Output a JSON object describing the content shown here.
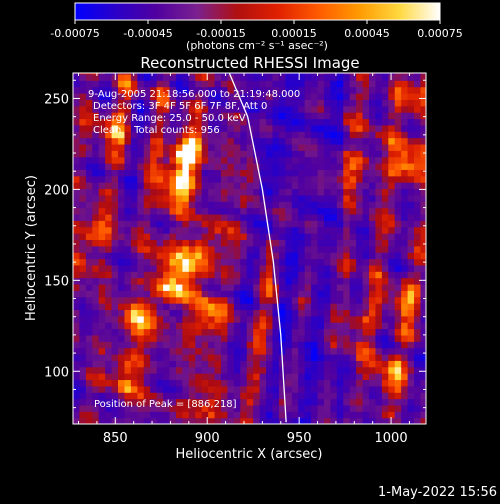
{
  "chart_data": {
    "type": "heatmap",
    "title": "Reconstructed RHESSI Image",
    "xlabel": "Heliocentric X (arcsec)",
    "ylabel": "Heliocentric Y (arcsec)",
    "xlim": [
      827,
      1019
    ],
    "ylim": [
      71,
      264
    ],
    "x_ticks": [
      850,
      900,
      950,
      1000
    ],
    "y_ticks": [
      100,
      150,
      200,
      250
    ],
    "colorbar": {
      "range": [
        -0.00075,
        0.00075
      ],
      "tick_labels": [
        "-0.00075",
        "-0.00045",
        "-0.00015",
        "0.00015",
        "0.00045",
        "0.00075"
      ],
      "unit_label": "(photons cm⁻² s⁻¹ asec⁻²)",
      "colors": [
        "#0000ff",
        "#2a00c8",
        "#5000a0",
        "#7a2090",
        "#b01010",
        "#e02000",
        "#ff5a00",
        "#ff9a00",
        "#ffd840",
        "#ffffff"
      ]
    },
    "annotations": [
      "9-Aug-2005 21:18:56.000 to 21:19:48.000",
      "Detectors: 3F 4F 5F 6F 7F 8F, Att 0",
      "Energy Range: 25.0 - 50.0 keV",
      "Clean    Total counts: 956"
    ],
    "peak_label": "Position of Peak = [886,218]",
    "peak": [
      886,
      218
    ],
    "limb_curve": [
      [
        912,
        264
      ],
      [
        922,
        240
      ],
      [
        930,
        200
      ],
      [
        936,
        160
      ],
      [
        940,
        120
      ],
      [
        943,
        71
      ]
    ],
    "bright_sources": [
      {
        "x": 888,
        "y": 220,
        "intensity": 1.0
      },
      {
        "x": 883,
        "y": 200,
        "intensity": 0.7
      },
      {
        "x": 893,
        "y": 165,
        "intensity": 0.85
      },
      {
        "x": 882,
        "y": 148,
        "intensity": 0.8
      },
      {
        "x": 897,
        "y": 128,
        "intensity": 0.6
      },
      {
        "x": 862,
        "y": 128,
        "intensity": 0.55
      },
      {
        "x": 838,
        "y": 175,
        "intensity": 0.55
      },
      {
        "x": 845,
        "y": 235,
        "intensity": 0.45
      },
      {
        "x": 857,
        "y": 100,
        "intensity": 0.5
      },
      {
        "x": 902,
        "y": 82,
        "intensity": 0.45
      },
      {
        "x": 1010,
        "y": 215,
        "intensity": 0.75
      },
      {
        "x": 1013,
        "y": 250,
        "intensity": 0.6
      },
      {
        "x": 1005,
        "y": 140,
        "intensity": 0.5
      },
      {
        "x": 980,
        "y": 125,
        "intensity": 0.45
      },
      {
        "x": 998,
        "y": 100,
        "intensity": 0.45
      },
      {
        "x": 965,
        "y": 205,
        "intensity": 0.35
      },
      {
        "x": 985,
        "y": 215,
        "intensity": 0.35
      },
      {
        "x": 960,
        "y": 152,
        "intensity": 0.25
      }
    ]
  },
  "footer": {
    "date": "1-May-2022 15:56"
  }
}
